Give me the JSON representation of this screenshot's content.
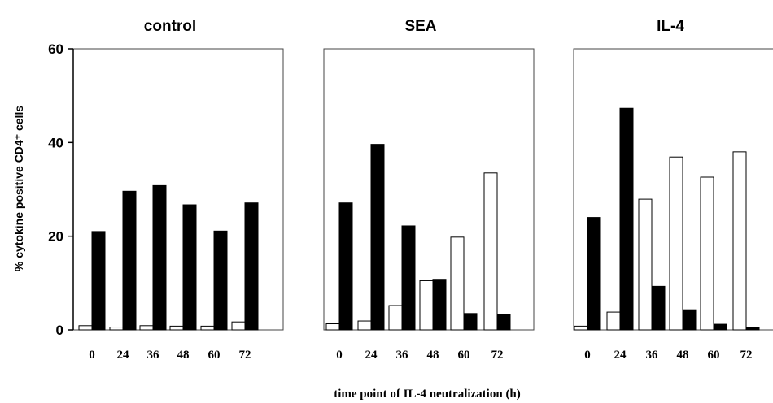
{
  "chart_data": {
    "type": "bar",
    "ylabel": "% cytokine positive CD4⁺ cells",
    "xlabel": "time point of IL-4 neutralization (h)",
    "ylim": [
      0,
      60
    ],
    "yticks": [
      "0",
      "20",
      "40",
      "60"
    ],
    "legend": "none",
    "grid": false,
    "colors": {
      "series_a": "#ffffff",
      "series_b": "#000000",
      "stroke": "#000000"
    },
    "panels": [
      {
        "title": "control",
        "categories": [
          "0",
          "24",
          "36",
          "48",
          "60",
          "72"
        ],
        "series": [
          {
            "values": [
              0.9,
              0.6,
              0.9,
              0.8,
              0.8,
              1.7
            ]
          },
          {
            "values": [
              21.0,
              29.6,
              30.8,
              26.7,
              21.1,
              27.1
            ]
          }
        ]
      },
      {
        "title": "SEA",
        "categories": [
          "0",
          "24",
          "36",
          "48",
          "60",
          "72"
        ],
        "series": [
          {
            "values": [
              1.3,
              1.9,
              5.2,
              10.5,
              19.8,
              33.5
            ]
          },
          {
            "values": [
              27.1,
              39.6,
              22.2,
              10.8,
              3.5,
              3.3
            ]
          }
        ]
      },
      {
        "title": "IL-4",
        "categories": [
          "0",
          "24",
          "36",
          "48",
          "60",
          "72"
        ],
        "series": [
          {
            "values": [
              0.8,
              3.8,
              27.9,
              36.9,
              32.6,
              38.0
            ]
          },
          {
            "values": [
              24.0,
              47.3,
              9.3,
              4.3,
              1.2,
              0.6
            ]
          }
        ]
      }
    ]
  }
}
